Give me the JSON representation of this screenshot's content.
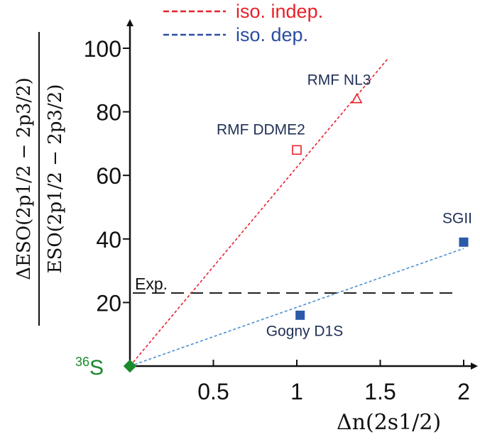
{
  "chart_data": {
    "type": "scatter",
    "xlabel": "Δn(2s1/2)",
    "ylabel_numerator": "ΔESO(2p1/2 − 2p3/2)",
    "ylabel_denominator": "ESO(2p1/2 − 2p3/2)",
    "xlim": [
      0,
      2.1
    ],
    "ylim": [
      0,
      112
    ],
    "x_ticks": [
      0.5,
      1,
      1.5,
      2
    ],
    "x_tick_labels": [
      "0.5",
      "1",
      "1.5",
      "2"
    ],
    "y_ticks": [
      20,
      40,
      60,
      80,
      100
    ],
    "y_tick_labels": [
      "20",
      "40",
      "60",
      "80",
      "100"
    ],
    "grid": false,
    "legend": {
      "placement": "top",
      "entries": [
        {
          "label": "iso. indep.",
          "color": "#e8202a",
          "style": "dashed"
        },
        {
          "label": "iso. dep.",
          "color": "#2a4da0",
          "style": "dashed"
        }
      ]
    },
    "reference_line": {
      "label": "Exp.",
      "y": 23
    },
    "origin_point": {
      "label_mass": "36",
      "label_element": "S",
      "x": 0,
      "y": 0,
      "color": "#1a8a2a"
    },
    "fit_lines": [
      {
        "name": "iso. indep.",
        "color": "#e8202a",
        "x": [
          0,
          1.55
        ],
        "y": [
          0,
          97
        ]
      },
      {
        "name": "iso. dep.",
        "color": "#4a8fd0",
        "x": [
          0,
          2
        ],
        "y": [
          0,
          37
        ]
      }
    ],
    "points": [
      {
        "label": "RMF NL3",
        "x": 1.36,
        "y": 84,
        "marker": "triangle-open",
        "color": "#e8202a"
      },
      {
        "label": "RMF DDME2",
        "x": 1.0,
        "y": 68,
        "marker": "square-open",
        "color": "#e8202a"
      },
      {
        "label": "SGII",
        "x": 2.0,
        "y": 39,
        "marker": "square-filled",
        "color": "#2a5aa8"
      },
      {
        "label": "Gogny D1S",
        "x": 1.02,
        "y": 16,
        "marker": "square-filled",
        "color": "#2a5aa8"
      }
    ]
  }
}
